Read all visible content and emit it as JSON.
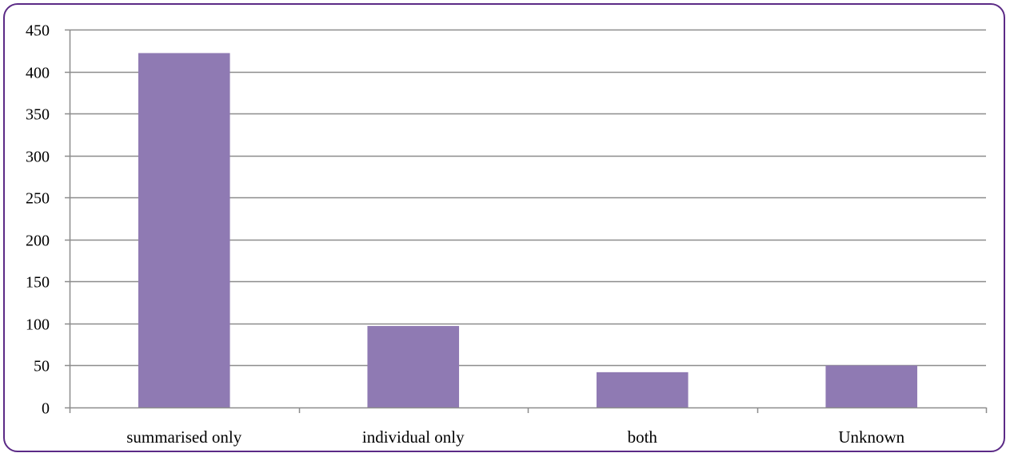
{
  "chart_data": {
    "type": "bar",
    "categories": [
      "summarised only",
      "individual only",
      "both",
      "Unknown"
    ],
    "values": [
      422,
      97,
      42,
      50
    ],
    "title": "",
    "xlabel": "",
    "ylabel": "",
    "ylim": [
      0,
      450
    ],
    "yticks": [
      0,
      50,
      100,
      150,
      200,
      250,
      300,
      350,
      400,
      450
    ],
    "grid": true,
    "legend": "none",
    "colors": {
      "bar": "#8f7ab3",
      "grid": "#8c8c8c",
      "axis": "#8c8c8c",
      "frame": "#5b2a86"
    }
  }
}
